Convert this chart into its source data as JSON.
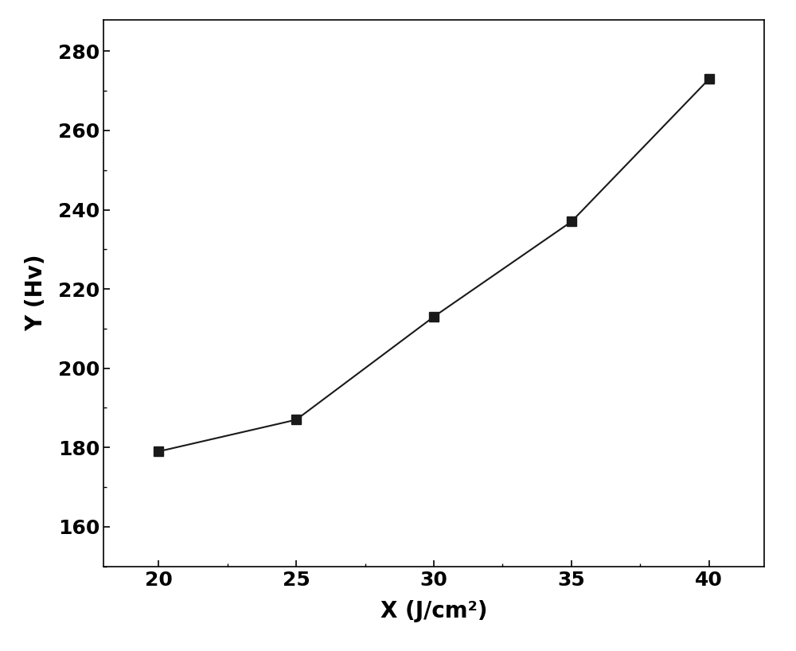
{
  "x": [
    20,
    25,
    30,
    35,
    40
  ],
  "y": [
    179,
    187,
    213,
    237,
    273
  ],
  "xlabel": "X (J/cm²)",
  "ylabel": "Y (Hv)",
  "xlim": [
    18,
    42
  ],
  "ylim": [
    150,
    288
  ],
  "xticks": [
    20,
    25,
    30,
    35,
    40
  ],
  "yticks": [
    160,
    180,
    200,
    220,
    240,
    260,
    280
  ],
  "line_color": "#1a1a1a",
  "marker": "s",
  "marker_color": "#1a1a1a",
  "marker_size": 8,
  "linewidth": 1.5,
  "xlabel_fontsize": 20,
  "ylabel_fontsize": 20,
  "tick_fontsize": 18,
  "background_color": "#ffffff"
}
